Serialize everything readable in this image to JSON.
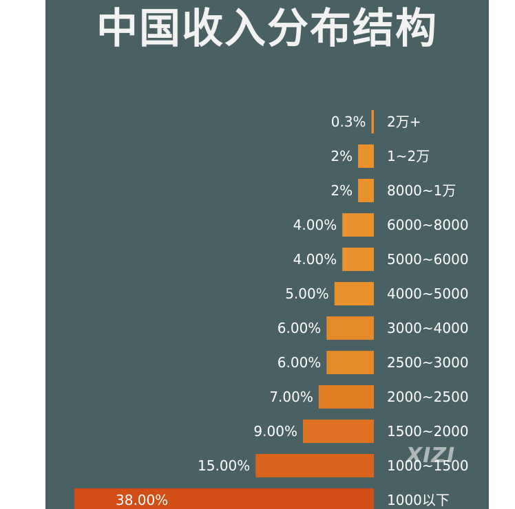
{
  "chart_data": {
    "type": "bar",
    "orientation": "horizontal",
    "title": "中国收入分布结构",
    "categories": [
      "2万+",
      "1~2万",
      "8000~1万",
      "6000~8000",
      "5000~6000",
      "4000~5000",
      "3000~4000",
      "2500~3000",
      "2000~2500",
      "1500~2000",
      "1000~1500",
      "1000以下"
    ],
    "values": [
      0.3,
      2,
      2,
      4,
      4,
      5,
      6,
      6,
      7,
      9,
      15,
      38
    ],
    "value_labels": [
      "0.3%",
      "2%",
      "2%",
      "4.00%",
      "4.00%",
      "5.00%",
      "6.00%",
      "6.00%",
      "7.00%",
      "9.00%",
      "15.00%",
      "38.00%"
    ],
    "bar_colors": [
      "#e8912d",
      "#e8912d",
      "#e8912d",
      "#e8912d",
      "#e8912d",
      "#e8912d",
      "#e58a2a",
      "#e58a2a",
      "#e27e26",
      "#de7222",
      "#d9621c",
      "#d14f16"
    ],
    "panel_color": "#4a6163",
    "text_color": "#ffffff"
  },
  "watermark": "XIZI"
}
